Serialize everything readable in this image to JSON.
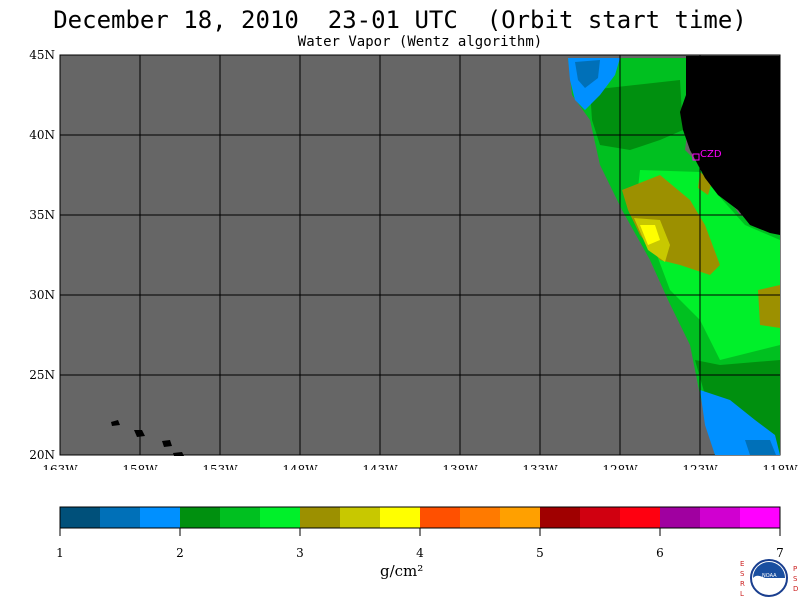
{
  "header": {
    "title": "December 18, 2010  23-01 UTC  (Orbit start time)",
    "subtitle": "Water Vapor (Wentz algorithm)"
  },
  "map": {
    "lat_labels": [
      "45N",
      "40N",
      "35N",
      "30N",
      "25N",
      "20N"
    ],
    "lon_labels": [
      "163W",
      "158W",
      "153W",
      "148W",
      "143W",
      "138W",
      "133W",
      "128W",
      "123W",
      "118W"
    ],
    "station_label": "CZD",
    "colors": {
      "nodata": "#666666",
      "land": "#000000",
      "station": "#ff00ff"
    }
  },
  "colorbar": {
    "ticks": [
      "1",
      "2",
      "3",
      "4",
      "5",
      "6",
      "7"
    ],
    "unit": "g/cm²",
    "colors": [
      "#00507a",
      "#0070b8",
      "#0090ff",
      "#00900f",
      "#00c020",
      "#00f02a",
      "#9c9000",
      "#c8c800",
      "#ffff00",
      "#ff5000",
      "#ff7a00",
      "#ffa000",
      "#a00000",
      "#d00010",
      "#ff0010",
      "#a000a0",
      "#d000d0",
      "#ff00ff"
    ]
  },
  "logo": {
    "left_letters": "E S R L",
    "right_letters": "P S D",
    "center_text": "NOAA"
  }
}
